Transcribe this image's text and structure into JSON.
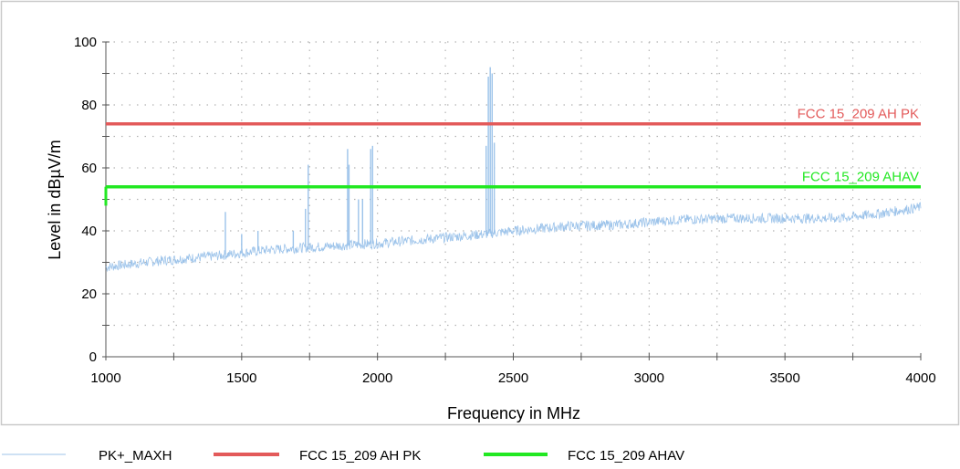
{
  "chart_data": {
    "type": "line",
    "title": "",
    "xlabel": "Frequency in MHz",
    "ylabel": "Level in dBµV/m",
    "xlim": [
      1000,
      4000
    ],
    "ylim": [
      0,
      100
    ],
    "x_ticks": [
      1000,
      1500,
      2000,
      2500,
      3000,
      3500,
      4000
    ],
    "y_ticks": [
      0,
      20,
      40,
      60,
      80,
      100
    ],
    "grid": true,
    "legend": "bottom",
    "series": [
      {
        "name": "PK+_MAXH",
        "style": "line",
        "color": "#9cc3ea",
        "noise_floor_x": [
          1000,
          1200,
          1400,
          1600,
          1800,
          2000,
          2200,
          2400,
          2500,
          2700,
          2900,
          3100,
          3300,
          3500,
          3700,
          3850,
          4000
        ],
        "noise_floor_y": [
          28.5,
          30.5,
          32,
          34,
          35,
          36,
          37.5,
          39,
          40,
          41.5,
          42,
          43.5,
          44,
          44,
          44,
          45.5,
          47.5
        ],
        "spikes": [
          {
            "x": 1440,
            "y": 46
          },
          {
            "x": 1500,
            "y": 39
          },
          {
            "x": 1560,
            "y": 40
          },
          {
            "x": 1690,
            "y": 40
          },
          {
            "x": 1735,
            "y": 47
          },
          {
            "x": 1745,
            "y": 61
          },
          {
            "x": 1890,
            "y": 66
          },
          {
            "x": 1895,
            "y": 61
          },
          {
            "x": 1930,
            "y": 50
          },
          {
            "x": 1945,
            "y": 50
          },
          {
            "x": 1975,
            "y": 66
          },
          {
            "x": 1982,
            "y": 67
          },
          {
            "x": 2400,
            "y": 67
          },
          {
            "x": 2408,
            "y": 89
          },
          {
            "x": 2415,
            "y": 92
          },
          {
            "x": 2422,
            "y": 90
          },
          {
            "x": 2430,
            "y": 68
          }
        ]
      },
      {
        "name": "FCC 15_209 AH PK",
        "label": "FCC 15_209 AH PK",
        "style": "limit",
        "color": "#e35a5a",
        "x": [
          1000,
          4000
        ],
        "y": [
          74,
          74
        ]
      },
      {
        "name": "FCC 15_209 AHAV",
        "label": "FCC 15_209 AHAV",
        "style": "limit",
        "color": "#22e822",
        "x": [
          1000,
          4000
        ],
        "y": [
          54,
          54
        ]
      }
    ]
  }
}
